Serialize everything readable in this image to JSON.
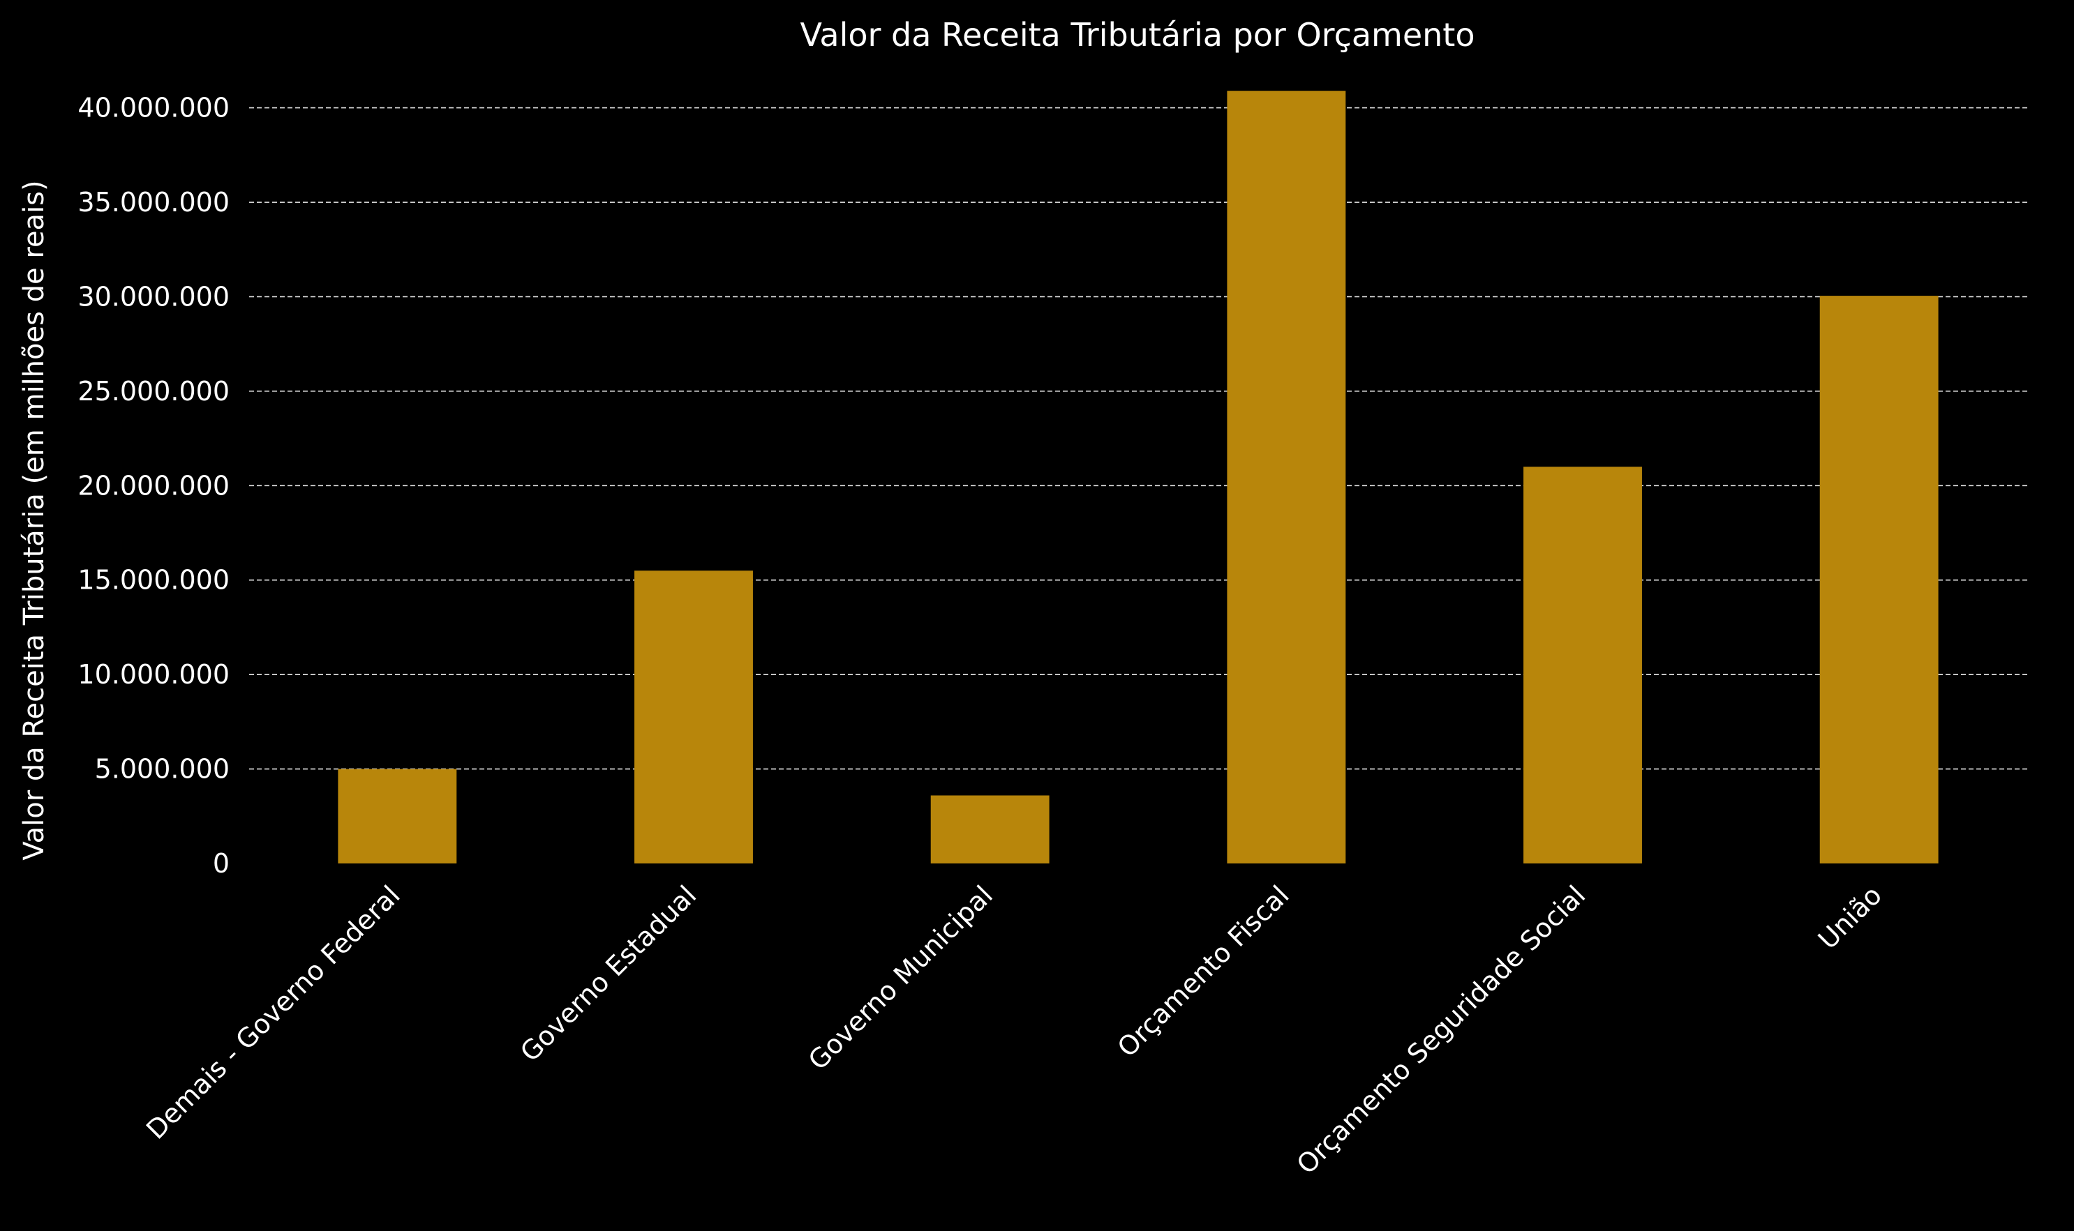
{
  "chart_data": {
    "type": "bar",
    "title": "Valor da Receita Tributária por Orçamento",
    "xlabel": "",
    "ylabel": "Valor da Receita Tributária (em milhões de reais)",
    "categories": [
      "Demais - Governo Federal",
      "Governo Estadual",
      "Governo Municipal",
      "Orçamento Fiscal",
      "Orçamento Seguridade Social",
      "União"
    ],
    "values": [
      5000000,
      15500000,
      3600000,
      40900000,
      21000000,
      30050000
    ],
    "ylim": [
      0,
      42200000
    ],
    "yticks": [
      0,
      5000000,
      10000000,
      15000000,
      20000000,
      25000000,
      30000000,
      35000000,
      40000000
    ],
    "ytick_labels": [
      "0",
      "5.000.000",
      "10.000.000",
      "15.000.000",
      "20.000.000",
      "25.000.000",
      "30.000.000",
      "35.000.000",
      "40.000.000"
    ],
    "grid": "horizontal dashed",
    "bar_color": "#b8860b",
    "background_color": "#000000",
    "text_color": "#ffffff"
  }
}
